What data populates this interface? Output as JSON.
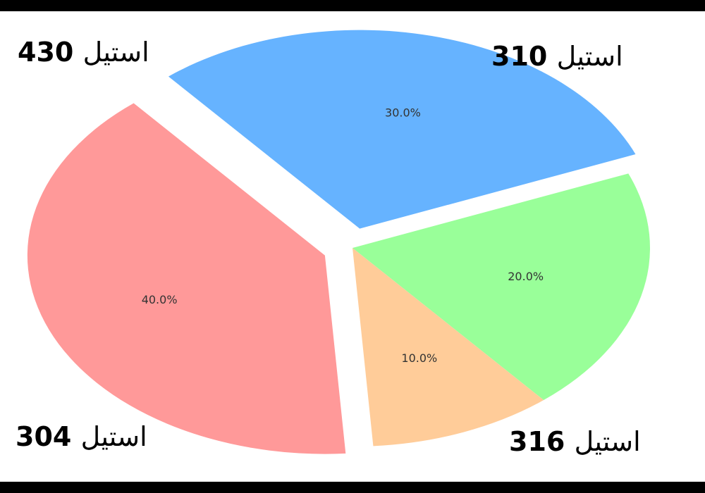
{
  "chart_data": {
    "type": "pie",
    "categories": [
      "استیل 304",
      "استیل 430",
      "استیل 310",
      "استیل 316"
    ],
    "values": [
      40,
      10,
      20,
      30
    ],
    "percent_labels": [
      "40.0%",
      "10.0%",
      "20.0%",
      "30.0%"
    ],
    "colors": [
      "#ff9999",
      "#ffcc99",
      "#99ff99",
      "#66b3ff"
    ],
    "exploded": [
      true,
      false,
      false,
      true
    ],
    "title": "",
    "legend": "none"
  }
}
